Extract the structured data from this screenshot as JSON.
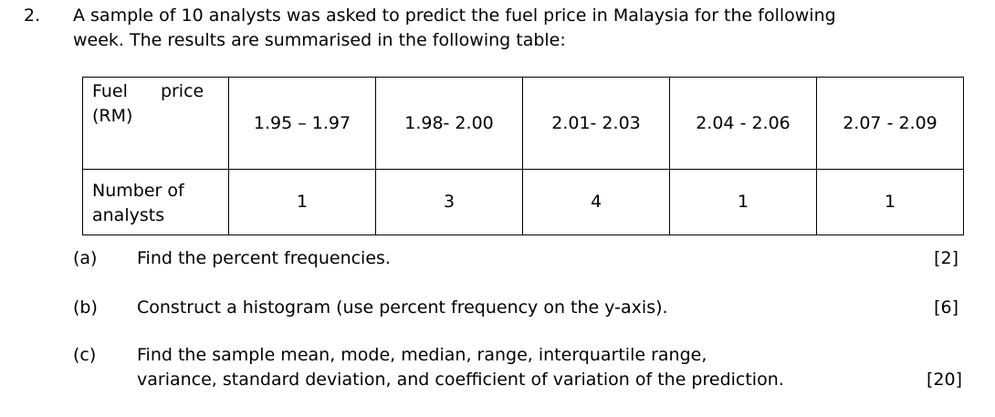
{
  "question": {
    "number": "2.",
    "intro": [
      "A sample of 10 analysts was asked to predict the fuel price in Malaysia for the following",
      "week. The results are summarised in the following table:"
    ],
    "table": {
      "rows": [
        [
          "Fuel price (RM)",
          "1.95 – 1.97",
          "1.98- 2.00",
          "2.01- 2.03",
          "2.04 - 2.06",
          "2.07 - 2.09"
        ],
        [
          "Number of analysts",
          1,
          3,
          4,
          1,
          1
        ]
      ]
    },
    "parts": [
      {
        "label": "(a)",
        "text": [
          "Find the percent frequencies."
        ],
        "marks": "[2]"
      },
      {
        "label": "(b)",
        "text": [
          "Construct a histogram (use percent frequency on the y-axis)."
        ],
        "marks": "[6]"
      },
      {
        "label": "(c)",
        "text": [
          "Find the sample mean, mode, median, range, interquartile range,",
          "variance, standard deviation, and coefficient of variation of the prediction."
        ],
        "marks": "[20]"
      }
    ]
  }
}
